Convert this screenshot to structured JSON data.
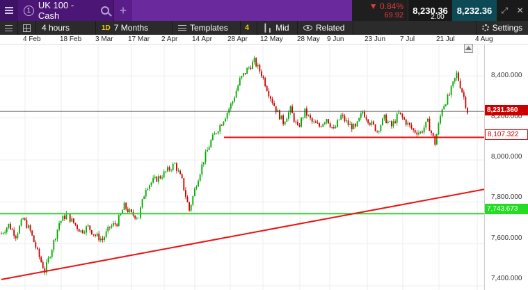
{
  "topbar": {
    "instrument_number": "1",
    "instrument_name": "UK 100 - Cash",
    "change_pct": "▼ 0.84%",
    "change_abs": "69.92",
    "sell_price": "8,230.36",
    "buy_price": "8,232.36",
    "spread": "2.00"
  },
  "toolbar": {
    "interval": "4 hours",
    "range_badge": "1D",
    "range": "7 Months",
    "templates": "Templates",
    "templates_count": "4",
    "price_type": "Mid",
    "related": "Related",
    "settings": "Settings"
  },
  "date_axis": [
    "4 Feb",
    "18 Feb",
    "3 Mar",
    "17 Mar",
    "2 Apr",
    "14 Apr",
    "28 Apr",
    "12 May",
    "28 May",
    "9 Jun",
    "23 Jun",
    "7 Jul",
    "21 Jul",
    "4 Aug"
  ],
  "price_axis": [
    "8,400.000",
    "8,200.000",
    "8,000.000",
    "7,800.000",
    "7,600.000",
    "7,400.000"
  ],
  "price_tags": {
    "current": "8,231.360",
    "resistance": "8,107.322",
    "support": "7,743.673"
  },
  "colors": {
    "up": "#00aa00",
    "down": "#cc0000",
    "resistance": "#ee0000",
    "trendline": "#ee1111",
    "support": "#22dd22",
    "current_price": "#cc0000"
  },
  "chart_data": {
    "type": "candlestick",
    "x_range": [
      "4 Feb",
      "4 Aug"
    ],
    "ylim": [
      7380,
      8550
    ],
    "y_ticks": [
      7400,
      7600,
      7800,
      8000,
      8200,
      8400
    ],
    "close_path": [
      [
        0,
        7650
      ],
      [
        4,
        7690
      ],
      [
        8,
        7640
      ],
      [
        12,
        7720
      ],
      [
        16,
        7660
      ],
      [
        20,
        7560
      ],
      [
        24,
        7470
      ],
      [
        28,
        7580
      ],
      [
        32,
        7700
      ],
      [
        36,
        7740
      ],
      [
        40,
        7700
      ],
      [
        44,
        7660
      ],
      [
        48,
        7680
      ],
      [
        52,
        7640
      ],
      [
        56,
        7620
      ],
      [
        60,
        7680
      ],
      [
        64,
        7700
      ],
      [
        68,
        7780
      ],
      [
        72,
        7740
      ],
      [
        76,
        7730
      ],
      [
        80,
        7870
      ],
      [
        84,
        7900
      ],
      [
        88,
        7920
      ],
      [
        92,
        7950
      ],
      [
        96,
        7980
      ],
      [
        100,
        7900
      ],
      [
        104,
        7760
      ],
      [
        108,
        7890
      ],
      [
        112,
        8000
      ],
      [
        116,
        8090
      ],
      [
        120,
        8150
      ],
      [
        124,
        8210
      ],
      [
        128,
        8280
      ],
      [
        132,
        8380
      ],
      [
        136,
        8430
      ],
      [
        140,
        8470
      ],
      [
        144,
        8410
      ],
      [
        148,
        8320
      ],
      [
        152,
        8240
      ],
      [
        156,
        8180
      ],
      [
        160,
        8240
      ],
      [
        164,
        8150
      ],
      [
        168,
        8230
      ],
      [
        172,
        8180
      ],
      [
        176,
        8160
      ],
      [
        180,
        8200
      ],
      [
        184,
        8140
      ],
      [
        188,
        8210
      ],
      [
        192,
        8170
      ],
      [
        196,
        8150
      ],
      [
        200,
        8230
      ],
      [
        204,
        8180
      ],
      [
        208,
        8140
      ],
      [
        212,
        8200
      ],
      [
        216,
        8160
      ],
      [
        220,
        8220
      ],
      [
        224,
        8180
      ],
      [
        228,
        8140
      ],
      [
        232,
        8130
      ],
      [
        236,
        8180
      ],
      [
        240,
        8080
      ],
      [
        244,
        8250
      ],
      [
        248,
        8310
      ],
      [
        252,
        8410
      ],
      [
        256,
        8300
      ],
      [
        258,
        8231
      ]
    ],
    "lines": [
      {
        "name": "resistance",
        "value": 8107.322
      },
      {
        "name": "support",
        "value": 7743.673
      },
      {
        "name": "current",
        "value": 8231.36
      },
      {
        "name": "trendline",
        "from": [
          0,
          7430
        ],
        "to": [
          258,
          7860
        ]
      }
    ]
  }
}
